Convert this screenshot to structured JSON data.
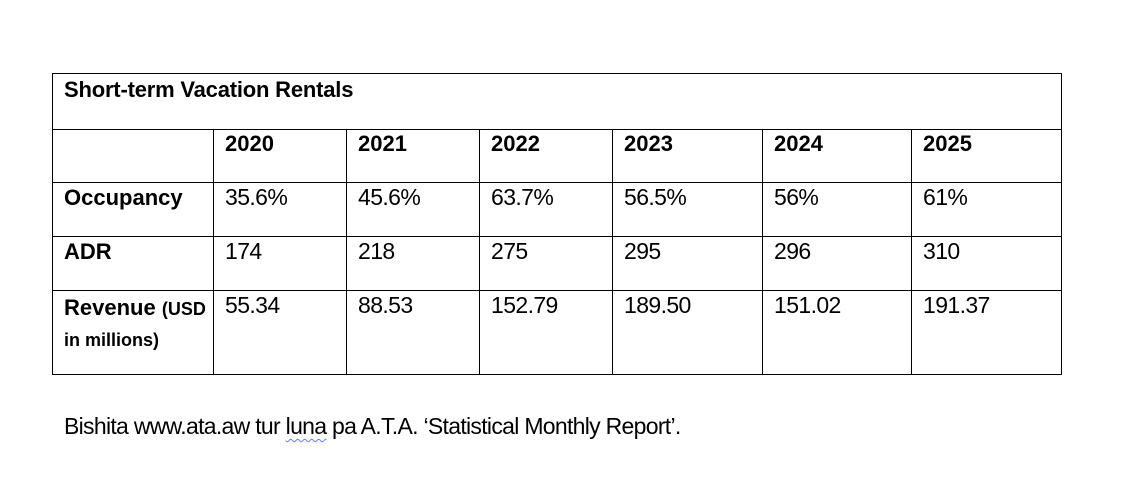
{
  "table": {
    "title": "Short-term Vacation Rentals",
    "years": [
      "2020",
      "2021",
      "2022",
      "2023",
      "2024",
      "2025"
    ],
    "rows": [
      {
        "label": "Occupancy",
        "values": [
          "35.6%",
          "45.6%",
          "63.7%",
          "56.5%",
          "56%",
          "61%"
        ]
      },
      {
        "label": "ADR",
        "values": [
          "174",
          "218",
          "275",
          "295",
          "296",
          "310"
        ]
      },
      {
        "label_main": "Revenue",
        "label_unit_1": "(USD",
        "label_unit_2": "in millions)",
        "values": [
          "55.34",
          "88.53",
          "152.79",
          "189.50",
          "151.02",
          "191.37"
        ]
      }
    ]
  },
  "source": {
    "before": "Bishita www.ata.aw tur ",
    "flagged_word": "luna",
    "after": " pa A.T.A. ‘Statistical Monthly Report’."
  }
}
